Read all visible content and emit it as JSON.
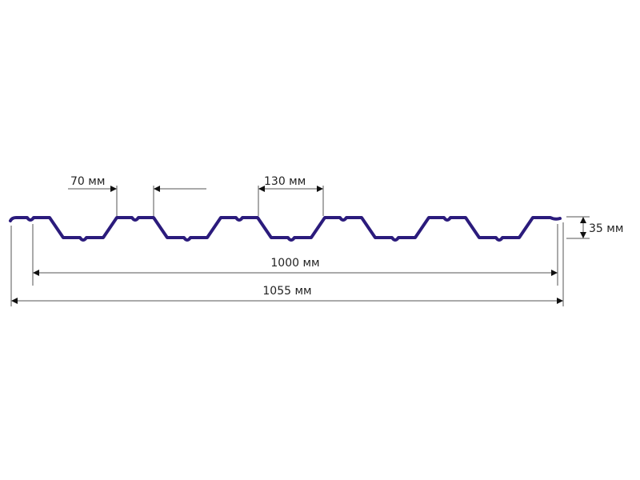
{
  "colors": {
    "profile": "#2b1b7c",
    "dimension_lines": "#555555"
  },
  "labels": {
    "crest_width": "70 мм",
    "pitch": "130 мм",
    "height": "35 мм",
    "useful_width": "1000 мм",
    "total_width": "1055 мм"
  }
}
